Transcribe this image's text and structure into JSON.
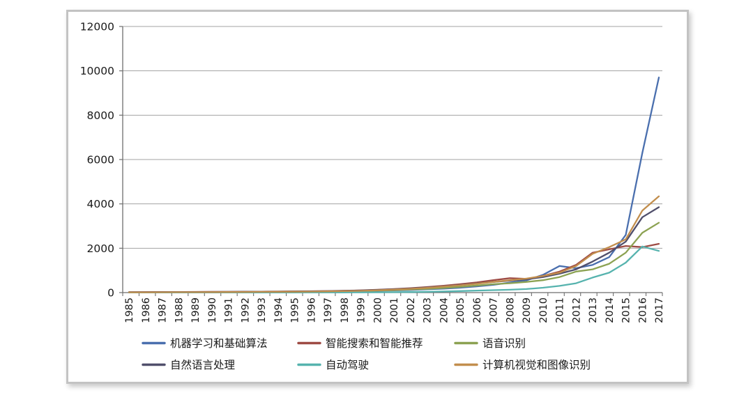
{
  "chart_data": {
    "type": "line",
    "title": "",
    "xlabel": "",
    "ylabel": "",
    "ylim": [
      0,
      12000
    ],
    "ytick_step": 2000,
    "ytick_labels": [
      "0",
      "2000",
      "4000",
      "6000",
      "8000",
      "10000",
      "12000"
    ],
    "grid": "horizontal",
    "legend_position": "bottom",
    "x": [
      1985,
      1986,
      1987,
      1988,
      1989,
      1990,
      1991,
      1992,
      1993,
      1994,
      1995,
      1996,
      1997,
      1998,
      1999,
      2000,
      2001,
      2002,
      2003,
      2004,
      2005,
      2006,
      2007,
      2008,
      2009,
      2010,
      2011,
      2012,
      2013,
      2014,
      2015,
      2016,
      2017
    ],
    "series": [
      {
        "id": "machine-learning-and-basic-algorithms",
        "name": "机器学习和基础算法",
        "color": "#4A6FAE",
        "values": [
          15,
          15,
          18,
          20,
          22,
          25,
          28,
          30,
          32,
          35,
          40,
          45,
          50,
          60,
          70,
          85,
          100,
          120,
          150,
          180,
          220,
          280,
          350,
          450,
          550,
          800,
          1200,
          1100,
          1250,
          1600,
          2600,
          6300,
          9700
        ]
      },
      {
        "id": "intelligent-search-and-recommendation",
        "name": "智能搜索和智能推荐",
        "color": "#9E4B44",
        "values": [
          20,
          22,
          25,
          28,
          30,
          33,
          36,
          40,
          44,
          48,
          55,
          62,
          70,
          85,
          100,
          130,
          160,
          200,
          250,
          310,
          380,
          460,
          560,
          650,
          620,
          750,
          950,
          1250,
          1800,
          1950,
          2100,
          2050,
          2200
        ]
      },
      {
        "id": "speech-recognition",
        "name": "语音识别",
        "color": "#8CA252",
        "values": [
          10,
          12,
          14,
          16,
          18,
          20,
          22,
          25,
          28,
          32,
          36,
          42,
          48,
          56,
          70,
          90,
          110,
          140,
          170,
          210,
          260,
          320,
          380,
          420,
          480,
          560,
          700,
          950,
          1050,
          1300,
          1800,
          2700,
          3150
        ]
      },
      {
        "id": "natural-language-processing",
        "name": "自然语言处理",
        "color": "#504F6B",
        "values": [
          18,
          20,
          22,
          25,
          28,
          31,
          34,
          38,
          42,
          46,
          52,
          58,
          66,
          78,
          95,
          120,
          150,
          185,
          230,
          280,
          340,
          410,
          480,
          540,
          600,
          700,
          850,
          1050,
          1400,
          1800,
          2300,
          3400,
          3850
        ]
      },
      {
        "id": "autonomous-driving",
        "name": "自动驾驶",
        "color": "#56B3AE",
        "values": [
          2,
          2,
          3,
          3,
          4,
          4,
          5,
          5,
          6,
          6,
          7,
          8,
          9,
          10,
          12,
          15,
          20,
          25,
          35,
          50,
          70,
          90,
          110,
          130,
          160,
          220,
          300,
          420,
          680,
          900,
          1350,
          2080,
          1880
        ]
      },
      {
        "id": "computer-vision-and-image-recognition",
        "name": "计算机视觉和图像识别",
        "color": "#C28E4D",
        "values": [
          12,
          14,
          16,
          18,
          20,
          23,
          26,
          29,
          33,
          37,
          42,
          48,
          55,
          65,
          80,
          105,
          135,
          170,
          215,
          270,
          330,
          400,
          480,
          560,
          630,
          750,
          900,
          1200,
          1750,
          2050,
          2400,
          3700,
          4340
        ]
      }
    ],
    "colors": {
      "gridline": "#a3a3a3",
      "axis": "#6e6e6e",
      "text": "#1a1a1a"
    }
  }
}
